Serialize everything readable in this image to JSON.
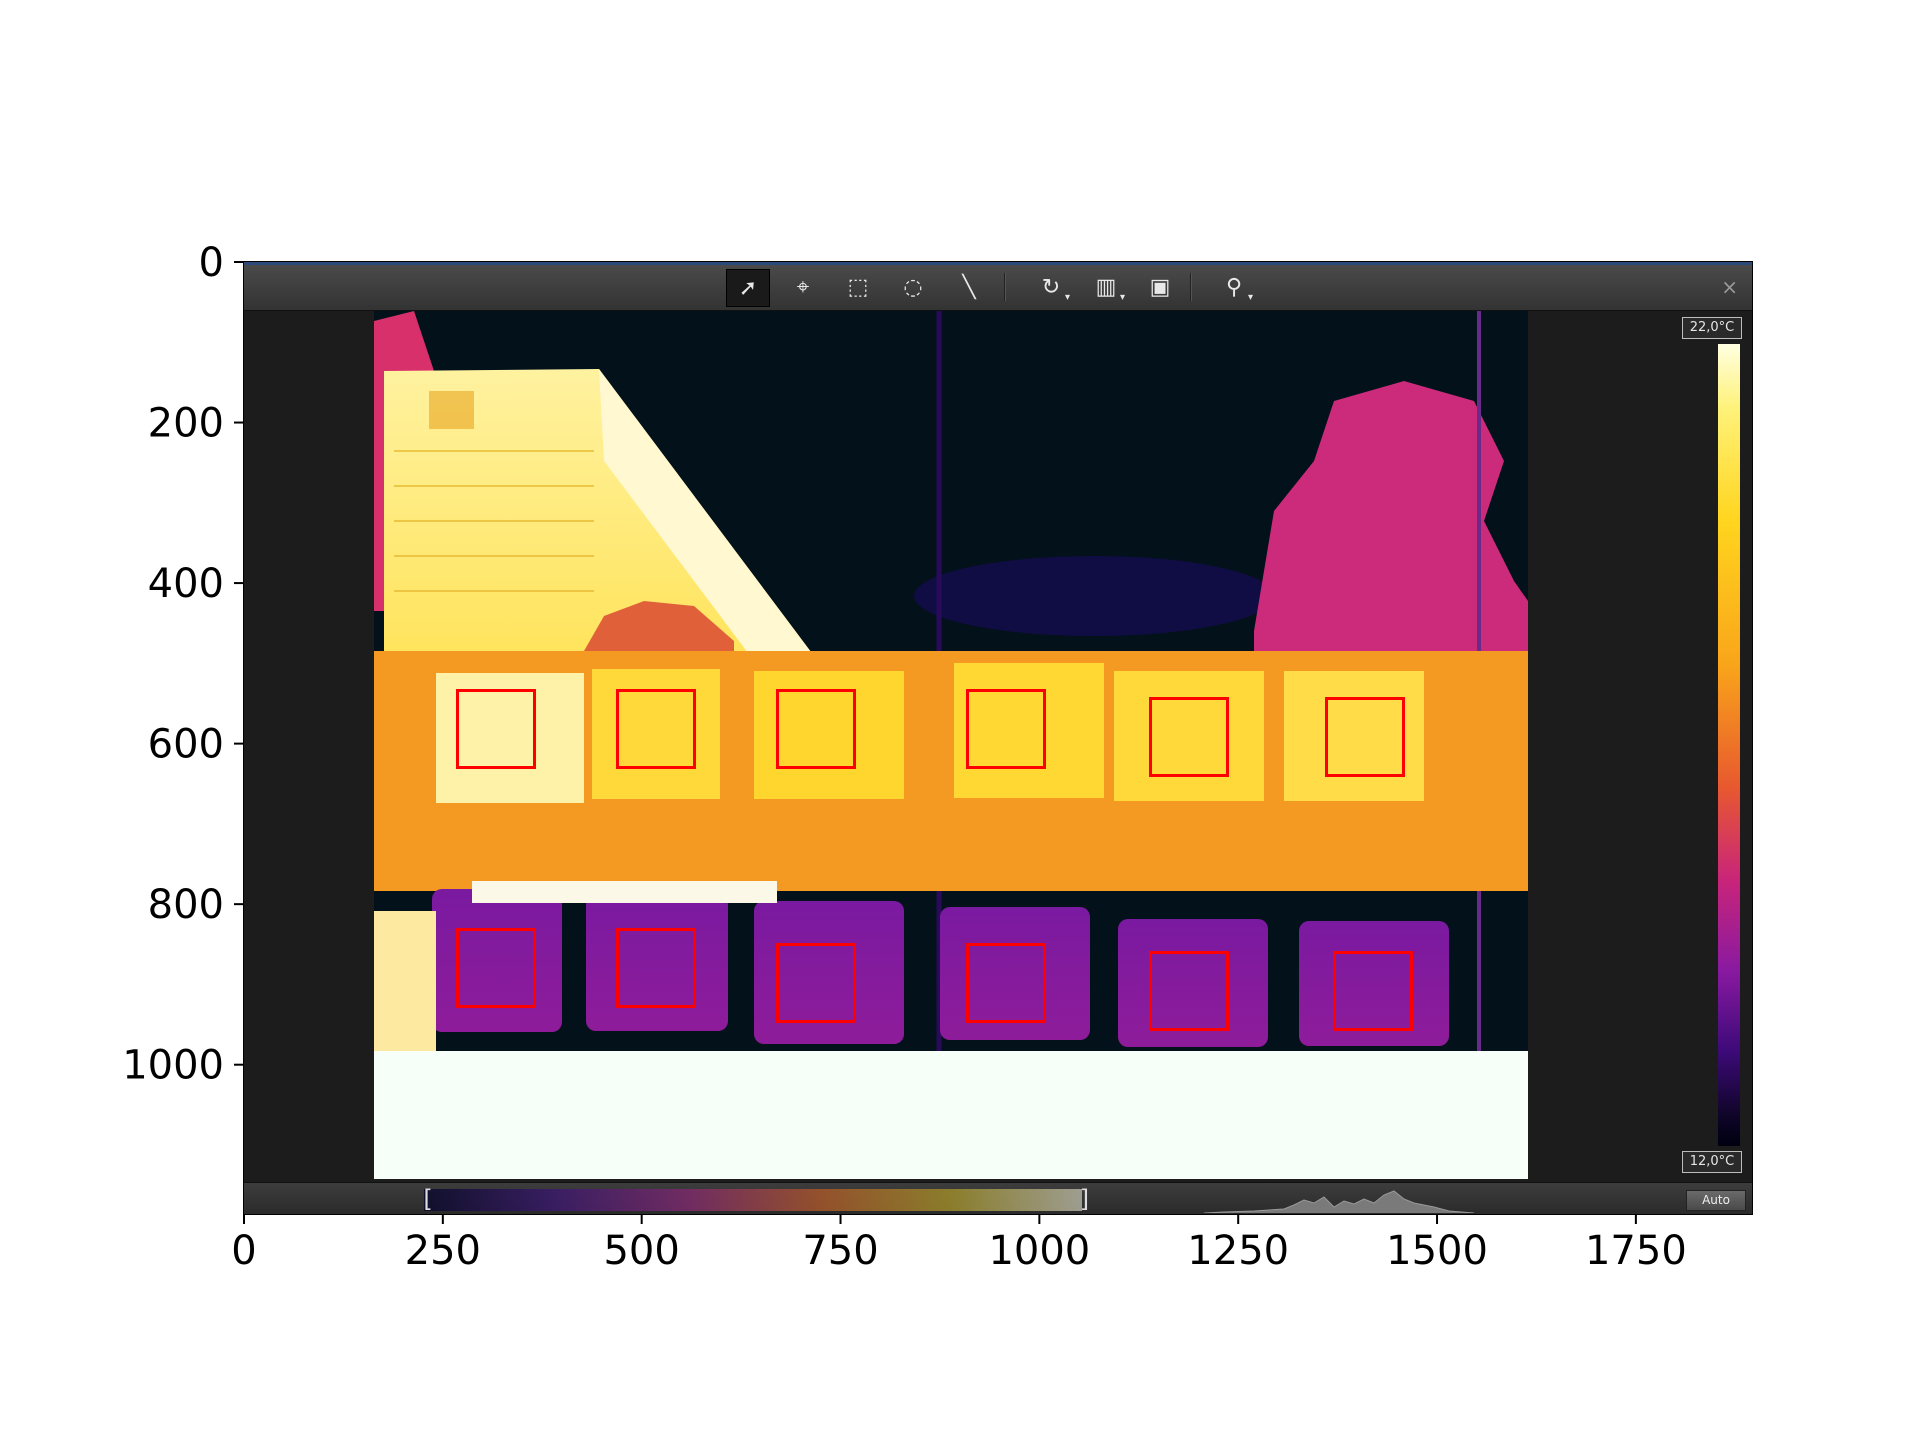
{
  "toolbar": {
    "tools": [
      {
        "name": "select-tool",
        "icon": "pointer-arrow-icon",
        "glyph": "➚",
        "active": true
      },
      {
        "name": "spot-tool",
        "icon": "crosshair-icon",
        "glyph": "⌖"
      },
      {
        "name": "rectangle-tool",
        "icon": "rectangle-select-icon",
        "glyph": "⬚"
      },
      {
        "name": "ellipse-tool",
        "icon": "ellipse-select-icon",
        "glyph": "◌"
      },
      {
        "name": "line-tool",
        "icon": "line-icon",
        "glyph": "╲"
      },
      {
        "name": "rotate-tool",
        "icon": "rotate-icon",
        "glyph": "↻",
        "dropdown": true
      },
      {
        "name": "palette-tool",
        "icon": "palette-icon",
        "glyph": "▥",
        "dropdown": true
      },
      {
        "name": "fusion-tool",
        "icon": "image-fusion-icon",
        "glyph": "▣"
      },
      {
        "name": "zoom-tool",
        "icon": "zoom-icon",
        "glyph": "⚲",
        "dropdown": true
      }
    ],
    "close_label": "×"
  },
  "temperature_scale": {
    "max_label": "22,0°C",
    "min_label": "12,0°C"
  },
  "bottom_bar": {
    "auto_label": "Auto",
    "range_left": "[",
    "range_right": "]"
  },
  "axes": {
    "x_ticks": [
      "0",
      "250",
      "500",
      "750",
      "1000",
      "1250",
      "1500",
      "1750"
    ],
    "y_ticks": [
      "0",
      "200",
      "400",
      "600",
      "800",
      "1000"
    ]
  },
  "colors": {
    "roi": "#ff0000",
    "window_bg": "#1c1c1c",
    "toolbar": "#3a3a3a"
  }
}
